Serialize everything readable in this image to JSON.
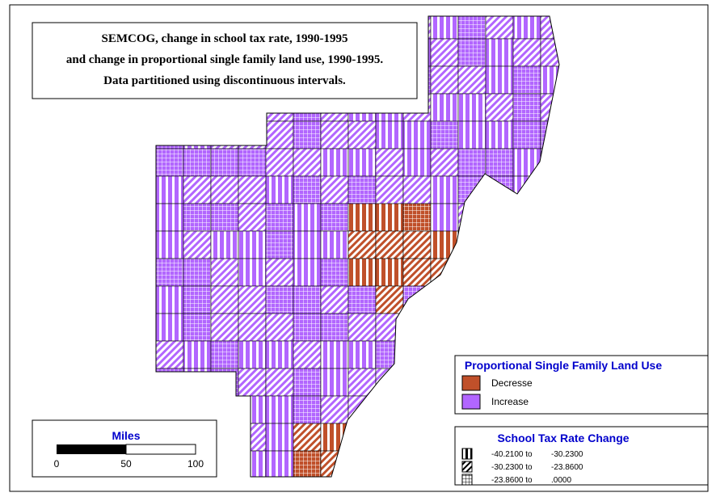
{
  "title": {
    "lines": [
      "SEMCOG, change in school tax rate, 1990-1995",
      "and change in proportional single family land use, 1990-1995.",
      "Data partitioned using discontinuous intervals."
    ]
  },
  "land_use_legend": {
    "title": "Proportional Single Family Land Use",
    "items": [
      {
        "label": "Decresse",
        "color": "#c0502a"
      },
      {
        "label": "Increase",
        "color": "#b266ff"
      }
    ]
  },
  "tax_legend": {
    "title": "School Tax Rate Change",
    "items": [
      {
        "from": "-40.2100 to",
        "to": "-30.2300"
      },
      {
        "from": "-30.2300 to",
        "to": "-23.8600"
      },
      {
        "from": "-23.8600 to",
        "to": ".0000"
      }
    ]
  },
  "scale_bar": {
    "title": "Miles",
    "ticks": [
      "0",
      "50",
      "100"
    ]
  }
}
